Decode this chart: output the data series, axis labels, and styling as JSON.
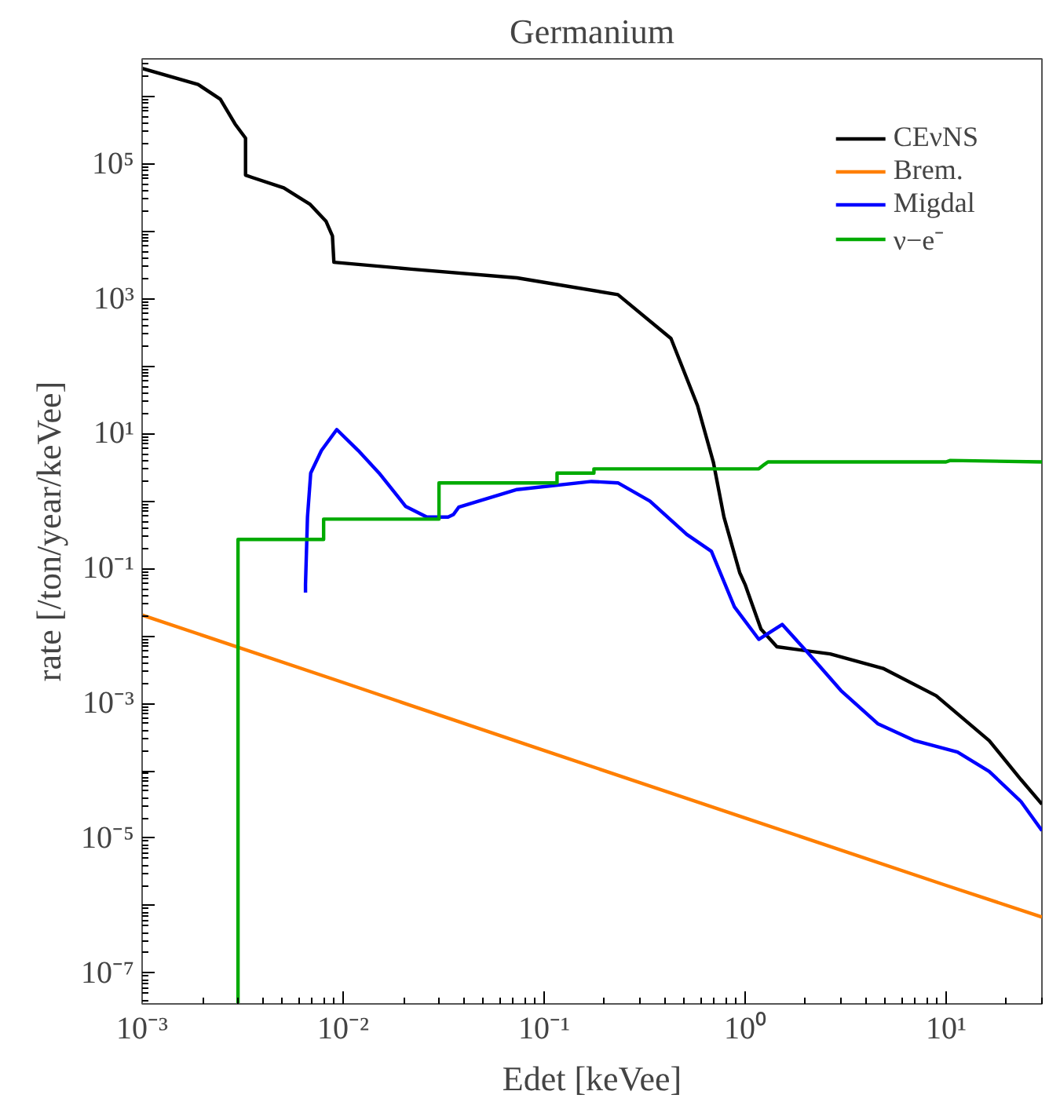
{
  "chart_data": {
    "type": "line",
    "title": "Germanium",
    "xlabel": "Edet [keVee]",
    "ylabel": "rate [/ton/year/keVee]",
    "log": "xy",
    "grid": false,
    "legend": "top right",
    "line_style": "solid",
    "marker": "none",
    "xlim": [
      0.001,
      30
    ],
    "ylim": [
      3.5e-08,
      3600000.0
    ],
    "xticks": [
      {
        "value": 0.001,
        "label": "10⁻³"
      },
      {
        "value": 0.01,
        "label": "10⁻²"
      },
      {
        "value": 0.1,
        "label": "10⁻¹"
      },
      {
        "value": 1,
        "label": "10⁰"
      },
      {
        "value": 10,
        "label": "10¹"
      }
    ],
    "yticks": [
      {
        "value": 1e-07,
        "label": "10⁻⁷"
      },
      {
        "value": 1e-06,
        "label": null
      },
      {
        "value": 1e-05,
        "label": "10⁻⁵"
      },
      {
        "value": 0.0001,
        "label": null
      },
      {
        "value": 0.001,
        "label": "10⁻³"
      },
      {
        "value": 0.01,
        "label": null
      },
      {
        "value": 0.1,
        "label": "10⁻¹"
      },
      {
        "value": 1,
        "label": null
      },
      {
        "value": 10,
        "label": "10¹"
      },
      {
        "value": 100,
        "label": null
      },
      {
        "value": 1000,
        "label": "10³"
      },
      {
        "value": 10000,
        "label": null
      },
      {
        "value": 100000,
        "label": "10⁵"
      },
      {
        "value": 1000000,
        "label": null
      }
    ],
    "series": [
      {
        "name": "CEνNS",
        "color": "#000000",
        "x": [
          0.001,
          0.0019,
          0.00245,
          0.0029,
          0.00327,
          0.00327,
          0.00352,
          0.00507,
          0.00686,
          0.00823,
          0.00885,
          0.009,
          0.0218,
          0.0733,
          0.233,
          0.428,
          0.58,
          0.695,
          0.785,
          0.94,
          1.0,
          1.2,
          1.44,
          2.65,
          4.86,
          8.93,
          16.4,
          23.6,
          30
        ],
        "values": [
          2600000,
          1500000,
          910000,
          390000,
          240000,
          68000,
          63000,
          44000,
          25000,
          14000,
          8500,
          3470,
          2750,
          2040,
          1150,
          257,
          26,
          3.8,
          0.58,
          0.087,
          0.058,
          0.0126,
          0.0069,
          0.0054,
          0.0033,
          0.0013,
          0.00028,
          7.4e-05,
          3.2e-05
        ]
      },
      {
        "name": "Brem.",
        "color": "#ff7f00",
        "x": [
          0.001,
          0.01,
          0.1,
          1,
          10,
          30
        ],
        "values": [
          0.0204,
          0.00204,
          0.0002,
          2e-05,
          2e-06,
          6.8e-07
        ]
      },
      {
        "name": "Migdal",
        "color": "#0000ff",
        "x": [
          0.0065,
          0.0065,
          0.00665,
          0.0069,
          0.0078,
          0.0093,
          0.0119,
          0.0151,
          0.0205,
          0.0261,
          0.0333,
          0.0354,
          0.0376,
          0.0733,
          0.172,
          0.233,
          0.336,
          0.513,
          0.68,
          0.885,
          1.17,
          1.53,
          2.08,
          3.0,
          4.57,
          7.0,
          11.4,
          16.4,
          23.6,
          30
        ],
        "values": [
          0.044,
          0.058,
          0.58,
          2.6,
          5.6,
          11.5,
          5.6,
          2.6,
          0.83,
          0.58,
          0.58,
          0.63,
          0.81,
          1.48,
          1.95,
          1.86,
          1.0,
          0.32,
          0.18,
          0.027,
          0.0089,
          0.0148,
          0.0054,
          0.00155,
          0.0005,
          0.00028,
          0.00019,
          9.8e-05,
          3.5e-05,
          1.3e-05
        ]
      },
      {
        "name": "ν−e⁻",
        "color": "#00aa00",
        "x": [
          0.003,
          0.003,
          0.008,
          0.008,
          0.03,
          0.03,
          0.116,
          0.116,
          0.177,
          0.177,
          1.17,
          1.25,
          1.3,
          10,
          10.5,
          30
        ],
        "values": [
          3.5e-08,
          0.27,
          0.27,
          0.54,
          0.54,
          1.86,
          1.86,
          2.6,
          2.6,
          3.0,
          3.0,
          3.5,
          3.8,
          3.8,
          4.0,
          3.8
        ]
      }
    ]
  }
}
